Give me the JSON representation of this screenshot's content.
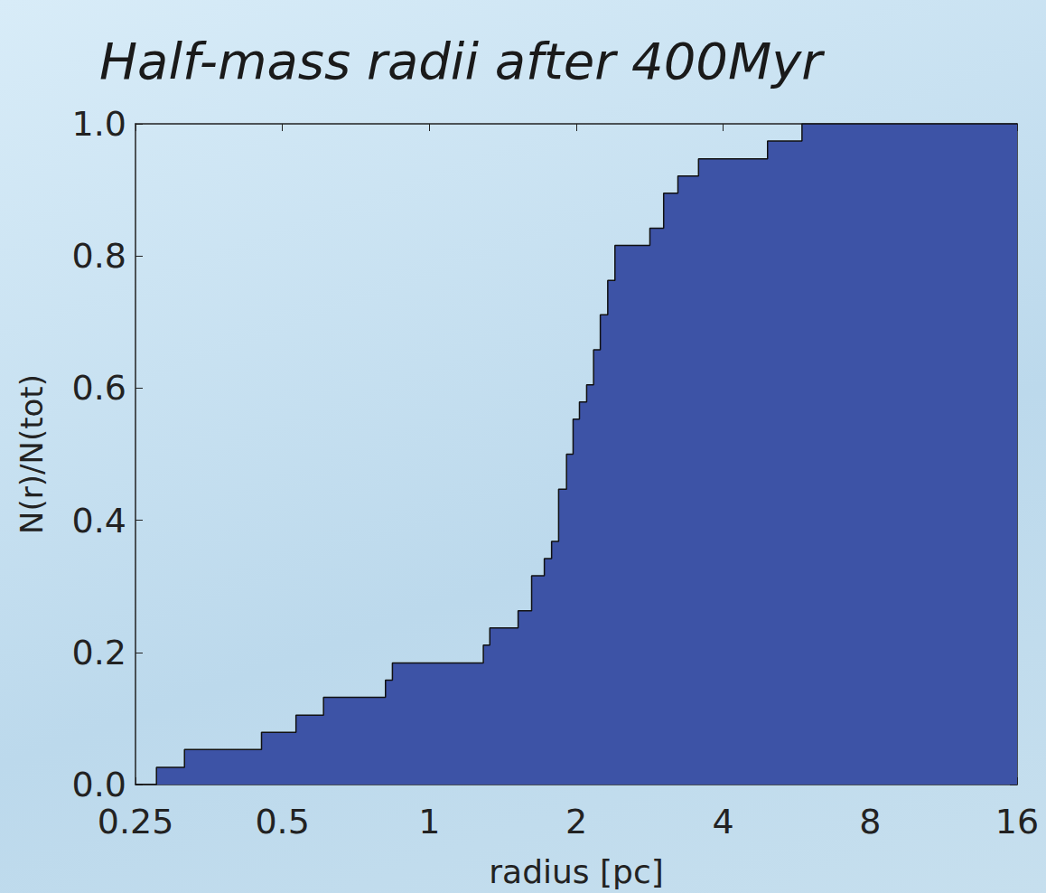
{
  "chart_data": {
    "type": "step",
    "title": "Half-mass radii after 400Myr",
    "x_label": "radius [pc]",
    "y_label": "N(r)/N(tot)",
    "x": [
      0.276,
      0.315,
      0.453,
      0.533,
      0.607,
      0.813,
      0.84,
      1.29,
      1.33,
      1.52,
      1.62,
      1.72,
      1.78,
      1.84,
      1.91,
      1.97,
      2.03,
      2.1,
      2.17,
      2.24,
      2.32,
      2.4,
      2.83,
      3.02,
      3.23,
      3.56,
      4.93,
      5.8
    ],
    "values": [
      0.026,
      0.053,
      0.079,
      0.105,
      0.132,
      0.158,
      0.184,
      0.211,
      0.237,
      0.263,
      0.316,
      0.342,
      0.368,
      0.447,
      0.5,
      0.553,
      0.579,
      0.605,
      0.658,
      0.711,
      0.763,
      0.816,
      0.842,
      0.895,
      0.921,
      0.947,
      0.974,
      1.0
    ],
    "color": "#3d53a6",
    "log": "x",
    "xlim": [
      0.25,
      16
    ],
    "xticks": [
      0.25,
      0.5,
      1,
      2,
      4,
      8,
      16
    ],
    "ylim": [
      0,
      1
    ],
    "yticks": [
      {
        "value": 0,
        "label": "0.0"
      },
      0.2,
      0.4,
      0.6,
      0.8,
      {
        "value": 1,
        "label": "1.0"
      }
    ],
    "grid": false
  }
}
